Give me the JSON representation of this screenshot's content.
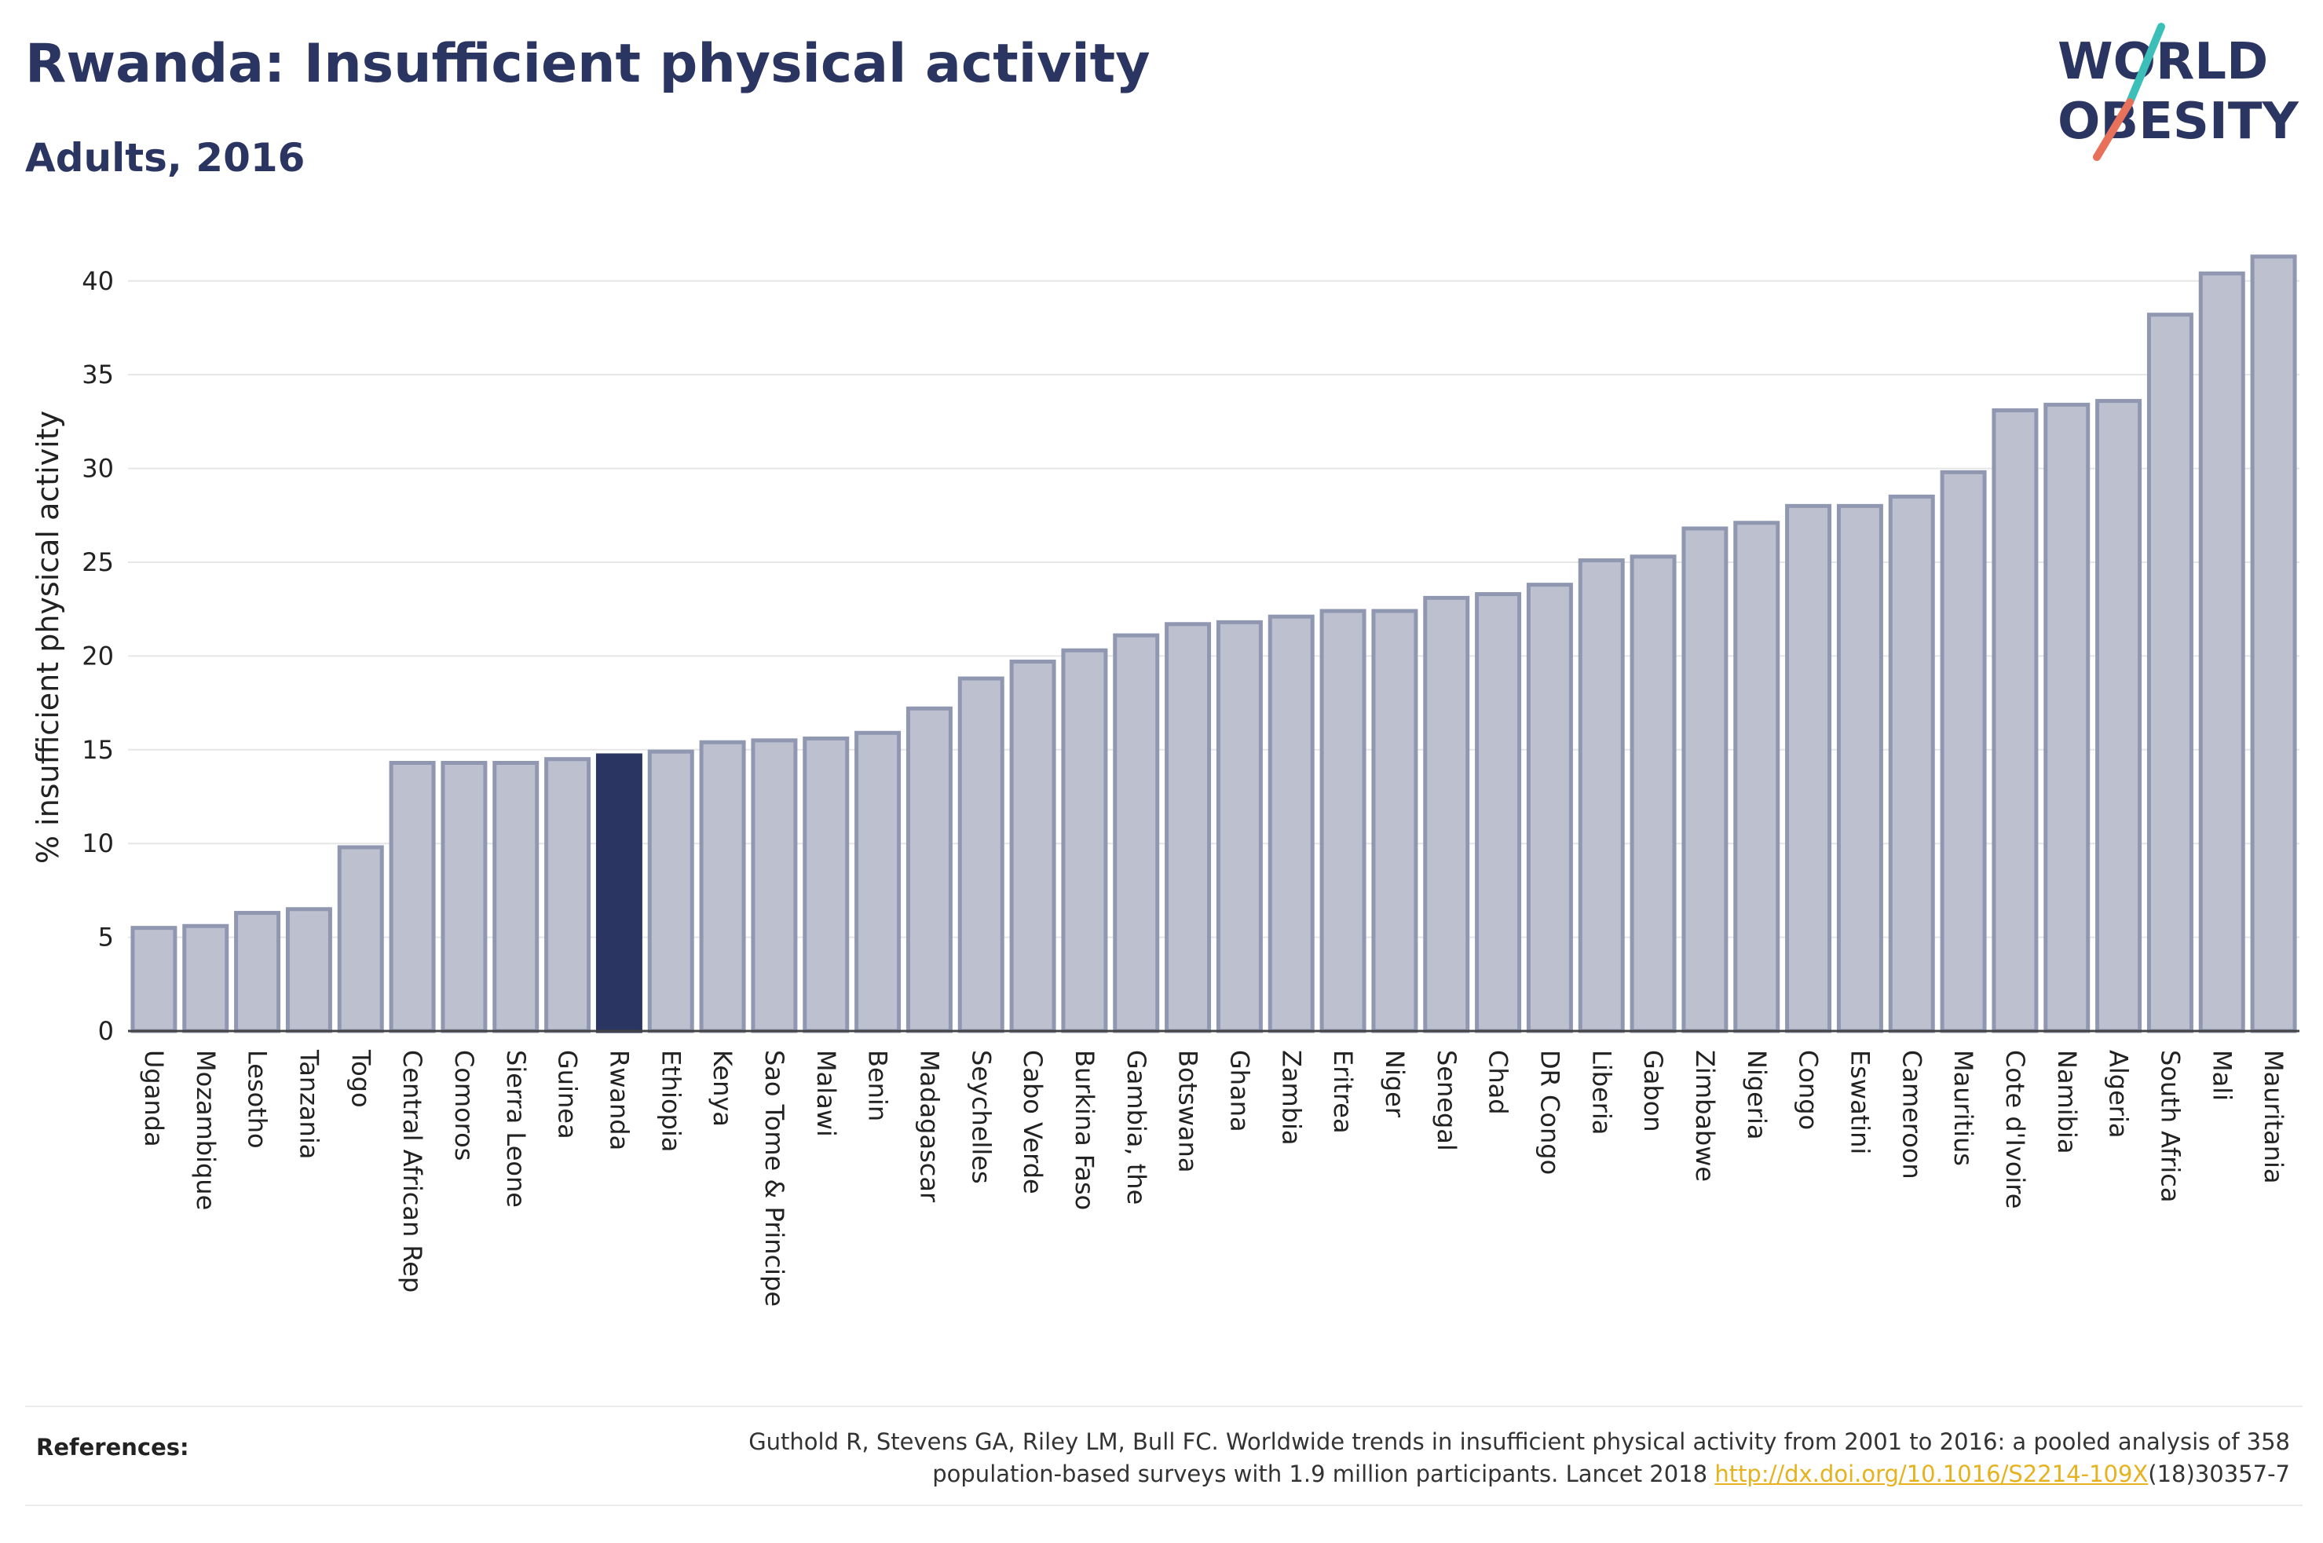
{
  "header": {
    "title": "Rwanda: Insufficient physical activity",
    "subtitle": "Adults, 2016"
  },
  "logo": {
    "line1": "WORLD",
    "line2": "OBESITY"
  },
  "references": {
    "label": "References:",
    "line1": "Guthold R, Stevens GA, Riley LM, Bull FC. Worldwide trends in insufficient physical activity from 2001 to 2016: a pooled analysis of 358",
    "line2_prefix": "population-based surveys with 1.9 million participants. Lancet 2018 ",
    "link": "http://dx.doi.org/10.1016/S2214-109X",
    "line2_suffix": "(18)30357-7"
  },
  "colors": {
    "bar_fill": "#bcc0cf",
    "bar_stroke": "#9097b0",
    "highlight": "#2b3561",
    "grid": "#e6e6e6",
    "text": "#222222",
    "link": "#e6b21e",
    "logo_teal": "#3bbfb8",
    "logo_coral": "#e8715c"
  },
  "chart_data": {
    "type": "bar",
    "ylabel": "% insufficient physical activity",
    "xlabel": "",
    "ylim": [
      0,
      42
    ],
    "yticks": [
      0,
      5,
      10,
      15,
      20,
      25,
      30,
      35,
      40
    ],
    "grid": true,
    "highlight": "Rwanda",
    "categories": [
      "Uganda",
      "Mozambique",
      "Lesotho",
      "Tanzania",
      "Togo",
      "Central African Rep",
      "Comoros",
      "Sierra Leone",
      "Guinea",
      "Rwanda",
      "Ethiopia",
      "Kenya",
      "Sao Tome & Principe",
      "Malawi",
      "Benin",
      "Madagascar",
      "Seychelles",
      "Cabo Verde",
      "Burkina Faso",
      "Gambia, the",
      "Botswana",
      "Ghana",
      "Zambia",
      "Eritrea",
      "Niger",
      "Senegal",
      "Chad",
      "DR Congo",
      "Liberia",
      "Gabon",
      "Zimbabwe",
      "Nigeria",
      "Congo",
      "Eswatini",
      "Cameroon",
      "Mauritius",
      "Cote d'Ivoire",
      "Namibia",
      "Algeria",
      "South Africa",
      "Mali",
      "Mauritania"
    ],
    "values": [
      5.5,
      5.6,
      6.3,
      6.5,
      9.8,
      14.3,
      14.3,
      14.3,
      14.5,
      14.7,
      14.9,
      15.4,
      15.5,
      15.6,
      15.9,
      17.2,
      18.8,
      19.7,
      20.3,
      21.1,
      21.7,
      21.8,
      22.1,
      22.4,
      22.4,
      23.1,
      23.3,
      23.8,
      25.1,
      25.3,
      26.8,
      27.1,
      28.0,
      28.0,
      28.5,
      29.8,
      33.1,
      33.4,
      33.6,
      38.2,
      40.4,
      41.3
    ]
  }
}
